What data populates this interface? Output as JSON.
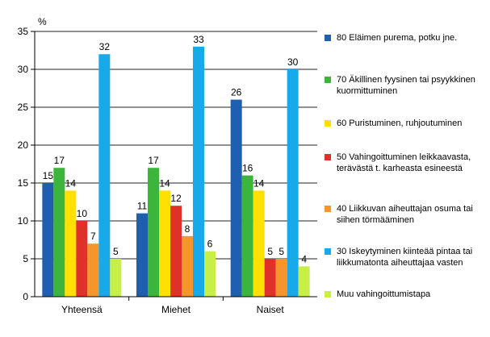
{
  "chart_data": {
    "type": "bar",
    "ylabel": "%",
    "ylim": [
      0,
      35
    ],
    "yticks": [
      "0",
      "5",
      "10",
      "15",
      "20",
      "25",
      "30",
      "35"
    ],
    "categories": [
      "Yhteensä",
      "Miehet",
      "Naiset"
    ],
    "grid": "horizontal",
    "legend_position": "right",
    "series": [
      {
        "name": "80  Eläimen purema, potku jne.",
        "color": "#1f5fb0",
        "values": [
          15,
          11,
          26
        ],
        "labels": [
          "15",
          "11",
          "26"
        ]
      },
      {
        "name": "70  Äkillinen fyysinen tai psyykkinen kuormittuminen",
        "color": "#3cb53c",
        "values": [
          17,
          17,
          16
        ],
        "labels": [
          "17",
          "17",
          "16"
        ]
      },
      {
        "name": "60  Puristuminen, ruhjoutuminen",
        "color": "#ffe000",
        "values": [
          14,
          14,
          14
        ],
        "labels": [
          "14",
          "14",
          "14"
        ]
      },
      {
        "name": "50  Vahingoittuminen leikkaavasta, terävästä t. karheasta esineestä",
        "color": "#e0302a",
        "values": [
          10,
          12,
          5
        ],
        "labels": [
          "10",
          "12",
          "5"
        ]
      },
      {
        "name": "40  Liikkuvan aiheuttajan osuma tai siihen törmääminen",
        "color": "#f5962d",
        "values": [
          7,
          8,
          5
        ],
        "labels": [
          "7",
          "8",
          "5"
        ]
      },
      {
        "name": "30  Iskeytyminen kiinteää pintaa tai liikkumatonta aiheuttajaa vasten",
        "color": "#18a9ea",
        "values": [
          32,
          33,
          30
        ],
        "labels": [
          "32",
          "33",
          "30"
        ]
      },
      {
        "name": "Muu vahingoittumistapa",
        "color": "#c8ee48",
        "values": [
          5,
          6,
          4
        ],
        "labels": [
          "5",
          "6",
          "4"
        ]
      }
    ]
  }
}
